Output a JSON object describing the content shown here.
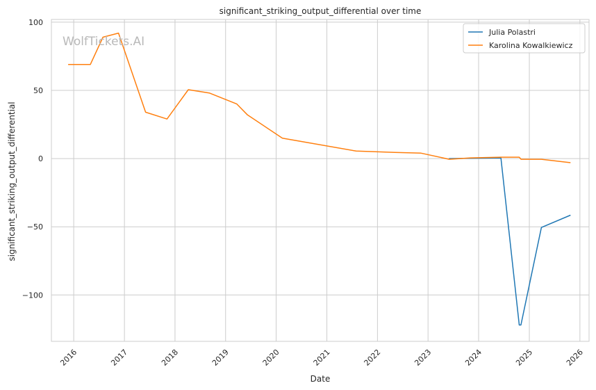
{
  "chart_data": {
    "type": "line",
    "title": "significant_striking_output_differential over time",
    "xlabel": "Date",
    "ylabel": "significant_striking_output_differential",
    "watermark": "WolfTickets.AI",
    "xlim": [
      "2015-07-24",
      "2026-03-08"
    ],
    "ylim": [
      -134,
      102
    ],
    "x_ticks": [
      "2016",
      "2017",
      "2018",
      "2019",
      "2020",
      "2021",
      "2022",
      "2023",
      "2024",
      "2025",
      "2026"
    ],
    "y_ticks": [
      100,
      50,
      0,
      -50,
      -100
    ],
    "y_tick_labels": [
      "100",
      "50",
      "0",
      "−50",
      "−100"
    ],
    "grid": true,
    "legend_position": "top-right",
    "series": [
      {
        "name": "Julia Polastri",
        "color": "#1f77b4",
        "points": [
          [
            "2023-06-01",
            0.0
          ],
          [
            "2024-06-10",
            0.5
          ],
          [
            "2024-10-20",
            -122.0
          ],
          [
            "2024-11-01",
            -122.0
          ],
          [
            "2025-03-29",
            -50.5
          ],
          [
            "2025-10-25",
            -41.5
          ]
        ]
      },
      {
        "name": "Karolina Kowalkiewicz",
        "color": "#ff7f0e",
        "points": [
          [
            "2015-11-22",
            69.0
          ],
          [
            "2016-04-30",
            69.0
          ],
          [
            "2016-07-30",
            89.0
          ],
          [
            "2016-11-19",
            92.0
          ],
          [
            "2017-06-03",
            34.0
          ],
          [
            "2017-11-04",
            29.0
          ],
          [
            "2018-04-07",
            50.5
          ],
          [
            "2018-09-08",
            48.0
          ],
          [
            "2019-03-23",
            40.0
          ],
          [
            "2019-06-08",
            32.0
          ],
          [
            "2020-02-15",
            15.0
          ],
          [
            "2021-07-31",
            5.5
          ],
          [
            "2022-05-07",
            4.5
          ],
          [
            "2022-11-12",
            4.0
          ],
          [
            "2023-06-03",
            -0.5
          ],
          [
            "2023-11-04",
            0.5
          ],
          [
            "2024-06-10",
            1.0
          ],
          [
            "2024-10-20",
            1.0
          ],
          [
            "2024-11-02",
            -0.5
          ],
          [
            "2025-03-29",
            -0.5
          ],
          [
            "2025-10-25",
            -3.0
          ]
        ]
      }
    ]
  }
}
